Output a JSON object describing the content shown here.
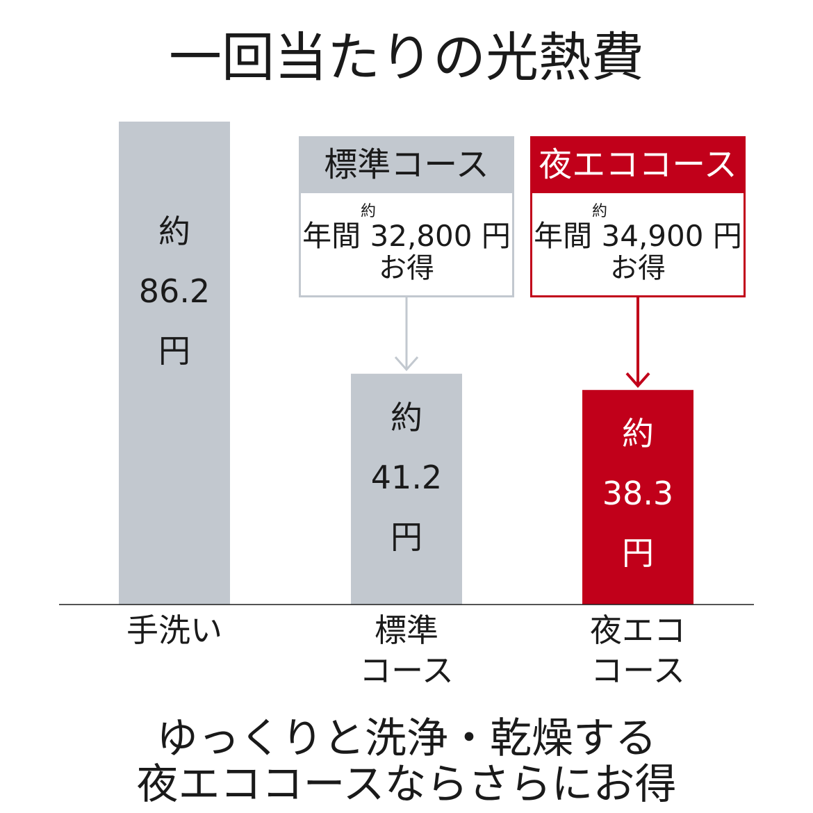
{
  "colors": {
    "gray": "#c2c8cf",
    "red": "#c1001a",
    "text": "#1a1a1a",
    "white": "#ffffff"
  },
  "title": "一回当たりの光熱費",
  "chart_data": {
    "type": "bar",
    "title": "一回当たりの光熱費",
    "categories": [
      "手洗い",
      "標準コース",
      "夜エココース"
    ],
    "values": [
      86.2,
      41.2,
      38.3
    ],
    "unit": "円",
    "ylim": [
      0,
      86.2
    ],
    "bars": [
      {
        "prefix": "約",
        "value_label": "86.2",
        "unit": "円",
        "cat_line1": "手洗い",
        "cat_line2": "",
        "color": "#c2c8cf",
        "text_color": "#1a1a1a"
      },
      {
        "prefix": "約",
        "value_label": "41.2",
        "unit": "円",
        "cat_line1": "標準",
        "cat_line2": "コース",
        "color": "#c2c8cf",
        "text_color": "#1a1a1a"
      },
      {
        "prefix": "約",
        "value_label": "38.3",
        "unit": "円",
        "cat_line1": "夜エコ",
        "cat_line2": "コース",
        "color": "#c1001a",
        "text_color": "#ffffff"
      }
    ],
    "annotations": [
      {
        "bar": 1,
        "head": "標準コース",
        "small": "約",
        "line": "年間 32,800 円",
        "sub": "お得",
        "color": "#c2c8cf",
        "head_text_color": "#1a1a1a"
      },
      {
        "bar": 2,
        "head": "夜エココース",
        "small": "約",
        "line": "年間 34,900 円",
        "sub": "お得",
        "color": "#c1001a",
        "head_text_color": "#ffffff"
      }
    ]
  },
  "footer": {
    "line1": "ゆっくりと洗浄・乾燥する",
    "line2": "夜エココースならさらにお得"
  }
}
